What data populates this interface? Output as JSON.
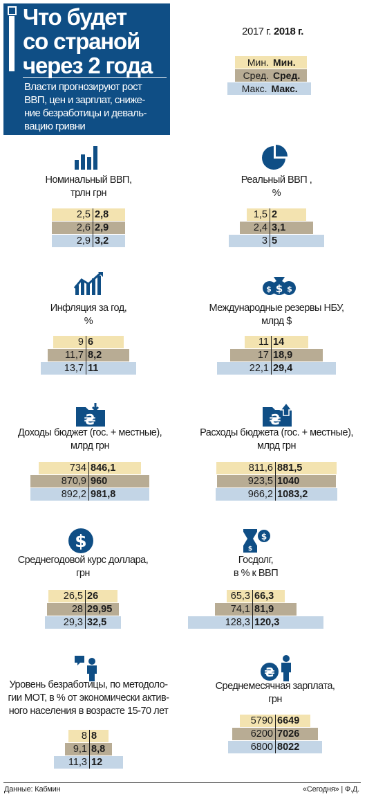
{
  "header": {
    "title_lines": [
      "Что будет",
      "со страной",
      "через 2 года"
    ],
    "subtitle_lines": [
      "Власти прогнозируют рост",
      "ВВП, цен и зарплат, сниже-",
      "ние безработицы и деваль-",
      "вацию гривни"
    ]
  },
  "legend": {
    "year1": "2017 г.",
    "year2": "2018 г.",
    "rows": [
      {
        "left": "Мин.",
        "right": "Мин."
      },
      {
        "left": "Сред.",
        "right": "Сред."
      },
      {
        "left": "Макс.",
        "right": "Макс."
      }
    ]
  },
  "colors": {
    "brand": "#0f4e85",
    "min": "#f3e3b0",
    "avg": "#b8ac94",
    "max": "#c3d5e6",
    "icon": "#0f4e85"
  },
  "chart_data": [
    {
      "type": "bar",
      "title_lines": [
        "Номинальный ВВП,",
        "трлн грн"
      ],
      "icon": "bar-chart-icon",
      "categories": [
        "Мин.",
        "Сред.",
        "Макс."
      ],
      "series": [
        {
          "name": "2017 г.",
          "values": [
            "2,5",
            "2,6",
            "2,9"
          ]
        },
        {
          "name": "2018 г.",
          "values": [
            "2,8",
            "2,9",
            "3,2"
          ]
        }
      ]
    },
    {
      "type": "bar",
      "title_lines": [
        "Реальный ВВП ,",
        "%"
      ],
      "icon": "pie-chart-icon",
      "categories": [
        "Мин.",
        "Сред.",
        "Макс."
      ],
      "series": [
        {
          "name": "2017 г.",
          "values": [
            "1,5",
            "2,4",
            "3"
          ]
        },
        {
          "name": "2018 г.",
          "values": [
            "2",
            "3,1",
            "5"
          ]
        }
      ]
    },
    {
      "type": "bar",
      "title_lines": [
        "Инфляция за год,",
        "%"
      ],
      "icon": "inflation-chart-icon",
      "categories": [
        "Мин.",
        "Сред.",
        "Макс."
      ],
      "series": [
        {
          "name": "2017 г.",
          "values": [
            "9",
            "11,7",
            "13,7"
          ]
        },
        {
          "name": "2018 г.",
          "values": [
            "6",
            "8,2",
            "11"
          ]
        }
      ]
    },
    {
      "type": "bar",
      "title_lines": [
        "Международные резервы НБУ,",
        "млрд $"
      ],
      "icon": "money-bags-icon",
      "categories": [
        "Мин.",
        "Сред.",
        "Макс."
      ],
      "series": [
        {
          "name": "2017 г.",
          "values": [
            "11",
            "17",
            "22,1"
          ]
        },
        {
          "name": "2018 г.",
          "values": [
            "14",
            "18,9",
            "29,4"
          ]
        }
      ]
    },
    {
      "type": "bar",
      "title_lines": [
        "Доходы бюджет (гос. + местные),",
        "млрд грн"
      ],
      "icon": "folder-income-icon",
      "categories": [
        "Мин.",
        "Сред.",
        "Макс."
      ],
      "series": [
        {
          "name": "2017 г.",
          "values": [
            "734",
            "870,9",
            "892,2"
          ]
        },
        {
          "name": "2018 г.",
          "values": [
            "846,1",
            "960",
            "981,8"
          ]
        }
      ]
    },
    {
      "type": "bar",
      "title_lines": [
        "Расходы бюджета (гос. + местные),",
        "млрд грн"
      ],
      "icon": "folder-expense-icon",
      "categories": [
        "Мин.",
        "Сред.",
        "Макс."
      ],
      "series": [
        {
          "name": "2017 г.",
          "values": [
            "811,6",
            "923,5",
            "966,2"
          ]
        },
        {
          "name": "2018 г.",
          "values": [
            "881,5",
            "1040",
            "1083,2"
          ]
        }
      ]
    },
    {
      "type": "bar",
      "title_lines": [
        "Среднегодовой курс доллара,",
        "грн"
      ],
      "icon": "dollar-coin-icon",
      "categories": [
        "Мин.",
        "Сред.",
        "Макс."
      ],
      "series": [
        {
          "name": "2017 г.",
          "values": [
            "26,5",
            "28",
            "29,3"
          ]
        },
        {
          "name": "2018 г.",
          "values": [
            "26",
            "29,95",
            "32,5"
          ]
        }
      ]
    },
    {
      "type": "bar",
      "title_lines": [
        "Госдолг,",
        "в % к ВВП"
      ],
      "icon": "hourglass-money-icon",
      "categories": [
        "Мин.",
        "Сред.",
        "Макс."
      ],
      "series": [
        {
          "name": "2017 г.",
          "values": [
            "65,3",
            "74,1",
            "128,3"
          ]
        },
        {
          "name": "2018 г.",
          "values": [
            "66,3",
            "81,9",
            "120,3"
          ]
        }
      ]
    },
    {
      "type": "bar",
      "title_lines": [
        "Уровень безработицы, по методоло-",
        "гии МОТ, в % от экономически актив-",
        "ного населения в возрасте 15-70 лет"
      ],
      "icon": "speaker-person-icon",
      "categories": [
        "Мин.",
        "Сред.",
        "Макс."
      ],
      "series": [
        {
          "name": "2017 г.",
          "values": [
            "8",
            "9,1",
            "11,3"
          ]
        },
        {
          "name": "2018 г.",
          "values": [
            "8",
            "8,8",
            "12"
          ]
        }
      ]
    },
    {
      "type": "bar",
      "title_lines": [
        "Среднемесячная зарплата,",
        "грн"
      ],
      "icon": "person-hryvnia-icon",
      "categories": [
        "Мин.",
        "Сред.",
        "Макс."
      ],
      "series": [
        {
          "name": "2017 г.",
          "values": [
            "5790",
            "6200",
            "6800"
          ]
        },
        {
          "name": "2018 г.",
          "values": [
            "6649",
            "7026",
            "8022"
          ]
        }
      ]
    }
  ],
  "footer": {
    "source": "Данные: Кабмин",
    "credit": "«Сегодня» | Ф.Д."
  }
}
